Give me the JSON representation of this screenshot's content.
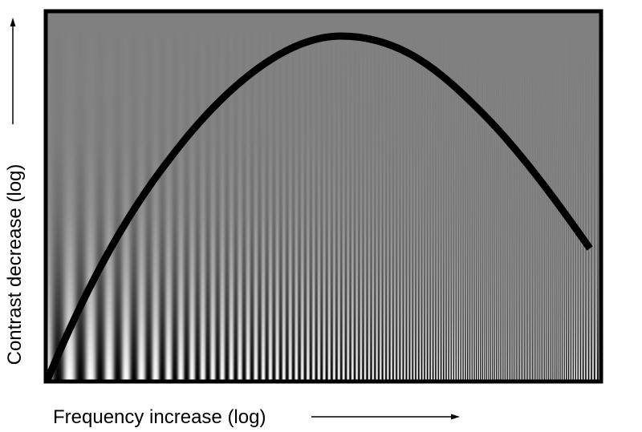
{
  "figure": {
    "xlabel": "Frequency increase (log)",
    "ylabel": "Contrast decrease (log)",
    "colors": {
      "background": "#ffffff",
      "grating_mid_gray": "#808080",
      "curve": "#000000",
      "frame": "#000000"
    },
    "icons": {
      "x_direction": "right-arrow-icon",
      "y_direction": "up-arrow-icon"
    }
  }
}
